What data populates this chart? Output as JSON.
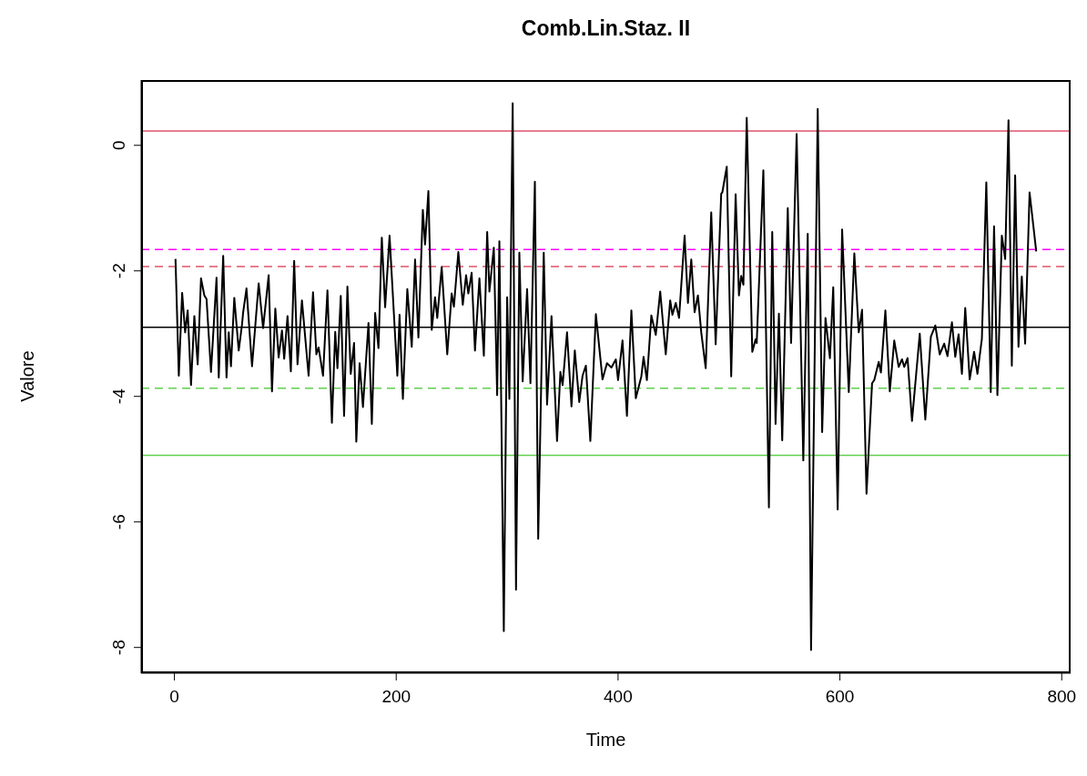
{
  "chart_data": {
    "type": "line",
    "title": "Comb.Lin.Staz. II",
    "xlabel": "Time",
    "ylabel": "Valore",
    "series": [
      {
        "color": "#000000",
        "x": [
          1,
          4,
          7,
          9.7,
          12,
          15,
          18,
          21,
          24,
          27,
          29,
          33,
          38,
          40,
          44,
          47,
          49,
          51,
          54,
          58,
          61,
          62,
          65,
          70,
          76,
          80,
          85,
          88,
          91,
          94,
          97,
          99,
          102,
          105,
          108,
          111,
          115,
          121,
          125,
          128,
          130,
          134,
          138,
          142,
          145,
          147,
          150,
          153,
          156,
          159,
          162,
          164,
          167,
          170,
          175,
          178,
          181,
          184,
          187,
          190,
          194,
          201,
          203,
          206,
          210,
          214,
          217,
          220,
          224,
          226,
          229,
          232,
          235,
          237,
          241,
          246,
          250,
          252,
          256,
          260,
          263,
          265,
          268,
          271,
          275,
          279,
          282,
          284,
          288,
          291,
          293,
          297,
          300,
          302,
          305,
          308,
          311,
          314,
          318,
          321,
          325,
          328,
          333,
          336,
          340,
          345,
          348,
          350,
          354,
          358,
          361,
          365,
          368,
          371,
          375,
          380,
          386,
          390,
          394,
          398,
          400,
          404,
          408,
          412,
          416,
          421,
          423,
          426,
          430,
          434,
          438,
          443,
          447,
          449,
          452,
          455,
          460,
          463,
          466,
          469,
          472,
          475,
          479,
          484,
          488,
          493,
          494,
          498,
          502,
          506,
          509,
          511,
          513,
          516,
          521,
          524,
          525,
          531,
          536,
          539,
          542,
          545,
          548,
          553,
          556,
          561,
          567,
          571,
          574,
          580,
          584,
          587,
          591,
          594,
          598,
          602,
          608,
          613,
          617,
          620,
          624,
          629,
          631,
          635,
          637,
          641,
          645,
          649,
          653,
          656,
          658,
          661,
          665,
          672,
          677,
          682,
          686,
          690,
          694,
          697,
          701,
          704,
          707,
          710,
          713,
          717,
          721,
          724,
          728,
          732,
          736,
          739,
          742,
          746,
          749,
          752,
          755,
          758,
          761,
          764,
          767,
          771,
          777
        ],
        "values": [
          -1.81,
          -3.67,
          -2.35,
          -2.98,
          -2.63,
          -3.82,
          -2.72,
          -3.49,
          -2.12,
          -2.39,
          -2.45,
          -3.61,
          -2.11,
          -3.7,
          -1.76,
          -3.7,
          -2.98,
          -3.52,
          -2.43,
          -3.27,
          -2.85,
          -2.66,
          -2.28,
          -3.52,
          -2.2,
          -2.91,
          -2.07,
          -3.92,
          -2.6,
          -3.38,
          -2.95,
          -3.4,
          -2.72,
          -3.6,
          -1.84,
          -3.49,
          -2.47,
          -3.67,
          -2.34,
          -3.33,
          -3.22,
          -3.67,
          -2.31,
          -4.42,
          -2.97,
          -3.55,
          -2.4,
          -4.31,
          -2.25,
          -3.64,
          -3.15,
          -4.72,
          -3.47,
          -4.17,
          -2.83,
          -4.44,
          -2.67,
          -3.23,
          -1.47,
          -2.58,
          -1.44,
          -3.67,
          -2.7,
          -4.04,
          -2.29,
          -3.21,
          -1.82,
          -3.06,
          -1.03,
          -1.58,
          -0.73,
          -2.94,
          -2.42,
          -2.75,
          -1.94,
          -3.33,
          -2.36,
          -2.57,
          -1.7,
          -2.54,
          -2.07,
          -2.36,
          -2.03,
          -3.27,
          -2.12,
          -3.35,
          -1.38,
          -2.33,
          -1.63,
          -3.98,
          -1.53,
          -7.74,
          -2.42,
          -4.04,
          0.67,
          -7.08,
          -1.71,
          -3.76,
          -2.29,
          -3.79,
          -0.58,
          -6.27,
          -1.71,
          -4.13,
          -2.72,
          -4.71,
          -3.61,
          -3.82,
          -2.98,
          -4.16,
          -3.27,
          -4.09,
          -3.67,
          -3.51,
          -4.71,
          -2.69,
          -3.73,
          -3.47,
          -3.54,
          -3.41,
          -3.74,
          -3.11,
          -4.31,
          -2.63,
          -4.03,
          -3.68,
          -3.37,
          -3.74,
          -2.71,
          -3.02,
          -2.33,
          -3.33,
          -2.47,
          -2.7,
          -2.51,
          -2.75,
          -1.44,
          -2.51,
          -1.82,
          -2.66,
          -2.39,
          -2.98,
          -3.55,
          -1.07,
          -3.17,
          -0.77,
          -0.75,
          -0.34,
          -3.68,
          -0.78,
          -2.39,
          -2.08,
          -2.22,
          0.44,
          -3.29,
          -3.09,
          -3.15,
          -0.4,
          -5.77,
          -1.38,
          -4.44,
          -2.68,
          -4.7,
          -1.0,
          -3.15,
          0.18,
          -5.02,
          -1.41,
          -8.04,
          0.58,
          -4.57,
          -2.75,
          -3.39,
          -2.26,
          -5.8,
          -1.34,
          -3.93,
          -1.72,
          -2.98,
          -2.62,
          -5.55,
          -3.79,
          -3.74,
          -3.45,
          -3.62,
          -2.63,
          -3.92,
          -3.11,
          -3.53,
          -3.41,
          -3.53,
          -3.39,
          -4.39,
          -3.0,
          -4.37,
          -3.05,
          -2.87,
          -3.33,
          -3.16,
          -3.36,
          -2.82,
          -3.37,
          -3.01,
          -3.64,
          -2.59,
          -3.73,
          -3.29,
          -3.64,
          -3.08,
          -0.59,
          -3.93,
          -1.29,
          -3.98,
          -1.44,
          -1.81,
          0.4,
          -3.51,
          -0.48,
          -3.21,
          -2.09,
          -3.16,
          -0.75,
          -1.69
        ]
      }
    ],
    "xlim": [
      -30,
      808
    ],
    "ylim": [
      -8.41,
      1.04
    ],
    "xticks": [
      0,
      200,
      400,
      600,
      800
    ],
    "yticks": [
      -8,
      -6,
      -4,
      -2,
      0
    ],
    "ref_lines": [
      {
        "axis": "y",
        "value": 0.23,
        "color": "#df536b",
        "line_style": "solid"
      },
      {
        "axis": "y",
        "value": -1.66,
        "color": "#ff00ff",
        "line_style": "dashed"
      },
      {
        "axis": "y",
        "value": -1.93,
        "color": "#df536b",
        "line_style": "dashed"
      },
      {
        "axis": "y",
        "value": -2.9,
        "color": "#000000",
        "line_style": "solid"
      },
      {
        "axis": "y",
        "value": -3.87,
        "color": "#61d04f",
        "line_style": "dashed"
      },
      {
        "axis": "y",
        "value": -4.94,
        "color": "#61d04f",
        "line_style": "solid"
      }
    ]
  }
}
